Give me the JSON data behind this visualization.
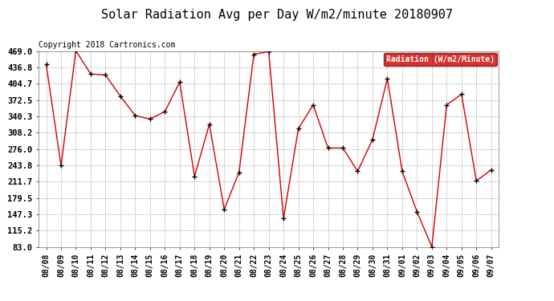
{
  "title": "Solar Radiation Avg per Day W/m2/minute 20180907",
  "copyright": "Copyright 2018 Cartronics.com",
  "legend_label": "Radiation (W/m2/Minute)",
  "x_labels": [
    "08/08",
    "08/09",
    "08/10",
    "08/11",
    "08/12",
    "08/13",
    "08/14",
    "08/15",
    "08/16",
    "08/17",
    "08/18",
    "08/19",
    "08/20",
    "08/21",
    "08/22",
    "08/23",
    "08/24",
    "08/25",
    "08/26",
    "08/27",
    "08/28",
    "08/29",
    "08/30",
    "08/31",
    "09/01",
    "09/02",
    "09/03",
    "09/04",
    "09/05",
    "09/06",
    "09/07"
  ],
  "y_values": [
    443,
    243,
    470,
    424,
    422,
    380,
    342,
    335,
    350,
    408,
    222,
    325,
    157,
    230,
    463,
    468,
    139,
    316,
    363,
    278,
    278,
    232,
    295,
    415,
    232,
    152,
    83,
    363,
    384,
    213,
    235
  ],
  "y_ticks": [
    83.0,
    115.2,
    147.3,
    179.5,
    211.7,
    243.8,
    276.0,
    308.2,
    340.3,
    372.5,
    404.7,
    436.8,
    469.0
  ],
  "line_color": "#cc0000",
  "marker_color": "#000000",
  "bg_color": "#ffffff",
  "plot_bg_color": "#ffffff",
  "grid_color": "#b0b0b0",
  "title_fontsize": 11,
  "copyright_fontsize": 7,
  "legend_bg": "#cc0000",
  "legend_text_color": "#ffffff"
}
